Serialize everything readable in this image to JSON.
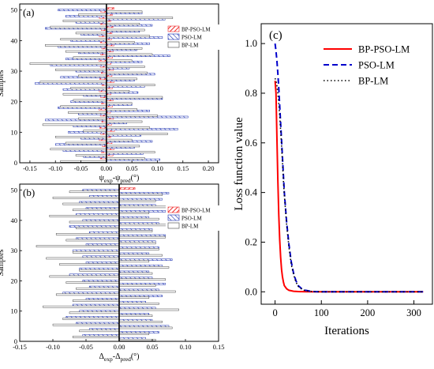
{
  "chart_data": [
    {
      "panel": "(a)",
      "type": "bar",
      "orientation": "horizontal",
      "xlabel_main": "ψ",
      "xlabel_sub1": "exp",
      "xlabel_mid": "-ψ",
      "xlabel_sub2": "pred",
      "xlabel_unit": "(°)",
      "ylabel": "Samples",
      "xlim": [
        -0.17,
        0.22
      ],
      "ylim": [
        0,
        52
      ],
      "xticks": [
        -0.15,
        -0.1,
        -0.05,
        0.0,
        0.05,
        0.1,
        0.15,
        0.2
      ],
      "xtick_labels": [
        "-0.15",
        "-0.10",
        "-0.05",
        "0.00",
        "0.05",
        "0.10",
        "0.15",
        "0.20"
      ],
      "yticks": [
        0,
        10,
        20,
        30,
        40,
        50
      ],
      "ytick_labels": [
        "0",
        "10",
        "20",
        "30",
        "40",
        "50"
      ],
      "legend_position": "top-right",
      "series": [
        {
          "name": "BP-PSO-LM",
          "color": "#ee2a2a",
          "pattern": "hatch-red",
          "values": [
            -0.012,
            0.013,
            -0.01,
            0.015,
            -0.008,
            0.011,
            -0.014,
            0.009,
            -0.011,
            0.016,
            -0.013,
            0.01,
            -0.009,
            0.014,
            -0.012,
            0.008,
            -0.015,
            0.012,
            -0.01,
            0.013,
            -0.011,
            0.009,
            -0.014,
            0.012,
            -0.009,
            0.015,
            -0.013,
            0.011,
            -0.01,
            0.014,
            -0.012,
            0.009,
            -0.015,
            0.012,
            -0.011,
            0.013,
            -0.009,
            0.015,
            -0.012,
            0.01,
            -0.014,
            0.011,
            -0.01,
            0.013,
            -0.012,
            0.009,
            -0.014,
            0.012,
            -0.011,
            0.015
          ]
        },
        {
          "name": "PSO-LM",
          "color": "#1a2fb0",
          "pattern": "hatch-blue",
          "values": [
            0.105,
            -0.045,
            0.072,
            -0.085,
            0.055,
            -0.1,
            0.09,
            -0.05,
            0.068,
            -0.075,
            0.14,
            -0.065,
            0.04,
            -0.12,
            0.16,
            -0.055,
            0.085,
            -0.095,
            0.05,
            -0.07,
            0.11,
            -0.045,
            0.062,
            -0.085,
            0.075,
            -0.14,
            0.055,
            -0.09,
            0.095,
            -0.06,
            0.045,
            -0.11,
            0.07,
            -0.08,
            0.125,
            -0.055,
            0.06,
            -0.095,
            0.085,
            -0.07,
            0.11,
            -0.05,
            0.065,
            -0.12,
            0.09,
            -0.06,
            0.115,
            -0.08,
            0.07,
            -0.095
          ]
        },
        {
          "name": "BP-LM",
          "color": "#444444",
          "pattern": "open",
          "values": [
            -0.09,
            0.075,
            -0.06,
            0.095,
            -0.11,
            0.065,
            -0.08,
            0.05,
            -0.1,
            0.12,
            -0.045,
            0.085,
            -0.125,
            0.07,
            -0.055,
            0.1,
            -0.075,
            0.06,
            -0.09,
            0.05,
            -0.065,
            0.11,
            -0.085,
            0.045,
            -0.07,
            0.095,
            -0.13,
            0.06,
            -0.055,
            0.08,
            -0.1,
            0.075,
            -0.15,
            0.05,
            -0.065,
            0.09,
            -0.08,
            0.07,
            -0.12,
            0.055,
            -0.09,
            0.085,
            -0.06,
            0.075,
            -0.11,
            0.065,
            -0.085,
            0.13,
            -0.055,
            0.07
          ]
        }
      ]
    },
    {
      "panel": "(b)",
      "type": "bar",
      "orientation": "horizontal",
      "xlabel_main": "Δ",
      "xlabel_sub1": "exp",
      "xlabel_mid": "-Δ",
      "xlabel_sub2": "pred",
      "xlabel_unit": "(°)",
      "ylabel": "Samples",
      "xlim": [
        -0.15,
        0.15
      ],
      "ylim": [
        0,
        52
      ],
      "xticks": [
        -0.15,
        -0.1,
        -0.05,
        0.0,
        0.05,
        0.1,
        0.15
      ],
      "xtick_labels": [
        "-0.15",
        "-0.10",
        "-0.05",
        "0.00",
        "0.05",
        "0.10",
        "0.15"
      ],
      "yticks": [
        0,
        10,
        20,
        30,
        40,
        50
      ],
      "ytick_labels": [
        "0",
        "10",
        "20",
        "30",
        "40",
        "50"
      ],
      "legend_position": "top-right",
      "series": [
        {
          "name": "BP-PSO-LM",
          "color": "#ee2a2a",
          "pattern": "hatch-red",
          "values": [
            -0.022,
            0.028,
            -0.02,
            0.025,
            -0.024,
            0.03,
            -0.021,
            0.026,
            -0.023,
            0.029,
            -0.025,
            0.022,
            -0.028,
            0.024,
            -0.02,
            0.027,
            -0.026,
            0.023,
            -0.022,
            0.03,
            -0.024,
            0.021,
            -0.027,
            0.025,
            -0.023,
            0.028,
            -0.021,
            0.026,
            -0.025,
            0.022,
            -0.029,
            0.024,
            -0.02,
            0.027,
            -0.026,
            0.023,
            -0.022,
            0.03,
            -0.024,
            0.021,
            -0.028,
            0.025,
            -0.023,
            0.027,
            -0.021,
            0.026,
            -0.025,
            0.022,
            -0.027,
            0.024
          ]
        },
        {
          "name": "PSO-LM",
          "color": "#1a2fb0",
          "pattern": "hatch-blue",
          "values": [
            0.04,
            -0.055,
            0.06,
            -0.045,
            0.075,
            -0.065,
            0.05,
            -0.08,
            0.045,
            -0.06,
            0.055,
            -0.07,
            0.04,
            -0.05,
            0.065,
            -0.085,
            0.06,
            -0.045,
            0.07,
            -0.055,
            0.05,
            -0.075,
            0.045,
            -0.06,
            0.065,
            -0.05,
            0.08,
            -0.055,
            0.045,
            -0.07,
            0.06,
            -0.05,
            0.055,
            -0.065,
            0.07,
            -0.045,
            0.05,
            -0.075,
            0.06,
            -0.055,
            0.045,
            -0.065,
            0.07,
            -0.05,
            0.055,
            -0.06,
            0.065,
            -0.045,
            0.075,
            -0.055
          ]
        },
        {
          "name": "BP-LM",
          "color": "#444444",
          "pattern": "open",
          "values": [
            0.055,
            -0.07,
            0.045,
            -0.06,
            0.08,
            -0.1,
            0.065,
            -0.085,
            0.05,
            -0.075,
            0.09,
            -0.115,
            0.06,
            -0.07,
            0.045,
            -0.095,
            0.085,
            -0.065,
            0.055,
            -0.08,
            0.07,
            -0.105,
            0.05,
            -0.06,
            0.075,
            -0.09,
            0.045,
            -0.11,
            0.065,
            -0.07,
            0.06,
            -0.125,
            0.055,
            -0.08,
            0.07,
            -0.095,
            0.05,
            -0.065,
            0.085,
            -0.075,
            0.06,
            -0.105,
            0.045,
            -0.07,
            0.08,
            -0.085,
            0.055,
            -0.1,
            0.065,
            -0.075
          ]
        }
      ]
    },
    {
      "panel": "(c)",
      "type": "line",
      "xlabel": "Iterations",
      "ylabel": "Loss function value",
      "xlim": [
        -30,
        340
      ],
      "ylim": [
        -0.05,
        1.08
      ],
      "xticks": [
        0,
        100,
        200,
        300
      ],
      "xtick_labels": [
        "0",
        "100",
        "200",
        "300"
      ],
      "yticks": [
        0.0,
        0.2,
        0.4,
        0.6,
        0.8,
        1.0
      ],
      "ytick_labels": [
        "0.0",
        "0.2",
        "0.4",
        "0.6",
        "0.8",
        "1.0"
      ],
      "legend_position": "top-right",
      "series": [
        {
          "name": "BP-PSO-LM",
          "color": "#ff0000",
          "dash": "solid",
          "x": [
            0,
            2,
            4,
            6,
            8,
            10,
            12,
            14,
            16,
            18,
            20,
            25,
            30,
            40,
            50,
            60,
            80,
            100,
            150,
            200,
            250,
            300,
            320
          ],
          "y": [
            0.85,
            0.8,
            0.62,
            0.45,
            0.31,
            0.21,
            0.14,
            0.09,
            0.06,
            0.04,
            0.025,
            0.012,
            0.006,
            0.002,
            0.001,
            0.0005,
            0,
            0,
            0,
            0,
            0,
            0,
            0
          ]
        },
        {
          "name": "PSO-LM",
          "color": "#0000cc",
          "dash": "dashed",
          "x": [
            0,
            2,
            4,
            6,
            8,
            10,
            12,
            14,
            16,
            18,
            20,
            25,
            30,
            35,
            40,
            45,
            50,
            60,
            80,
            100,
            150,
            200,
            250,
            300,
            320
          ],
          "y": [
            1.0,
            0.97,
            0.93,
            0.88,
            0.82,
            0.75,
            0.68,
            0.61,
            0.54,
            0.47,
            0.4,
            0.28,
            0.19,
            0.12,
            0.075,
            0.045,
            0.025,
            0.008,
            0.001,
            0,
            0,
            0,
            0,
            0,
            0
          ]
        },
        {
          "name": "BP-LM",
          "color": "#000000",
          "dash": "dotted",
          "x": [
            0,
            2,
            4,
            6,
            8,
            10,
            12,
            14,
            16,
            18,
            20,
            25,
            30,
            35,
            40,
            45,
            50,
            60,
            80,
            100,
            150,
            200,
            250,
            300,
            320
          ],
          "y": [
            0.86,
            0.85,
            0.83,
            0.8,
            0.76,
            0.71,
            0.65,
            0.59,
            0.52,
            0.45,
            0.39,
            0.27,
            0.18,
            0.11,
            0.07,
            0.04,
            0.022,
            0.007,
            0.001,
            0,
            0,
            0,
            0,
            0,
            0
          ]
        }
      ]
    }
  ]
}
